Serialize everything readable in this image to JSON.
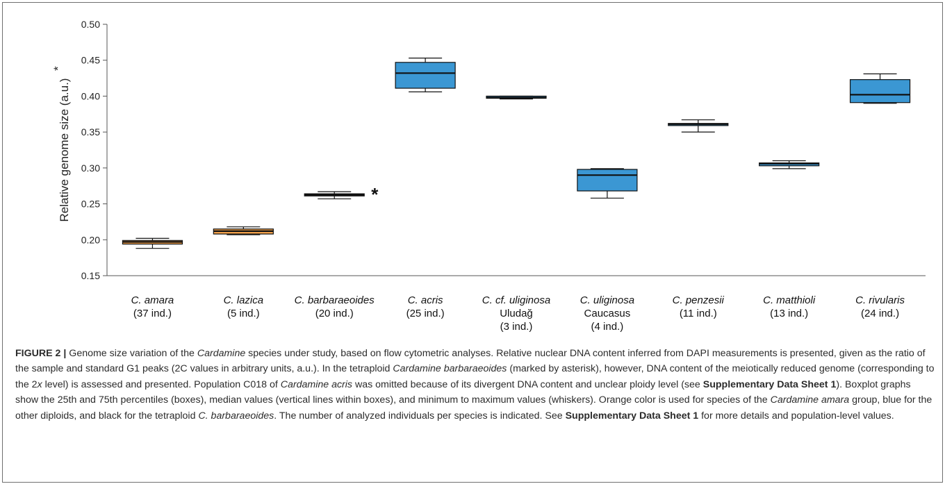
{
  "chart_data": {
    "type": "box",
    "ylabel": "Relative genome size (a.u.)",
    "ylabel_marker": "*",
    "ylim": [
      0.15,
      0.5
    ],
    "yticks": [
      "0.50",
      "0.45",
      "0.40",
      "0.35",
      "0.30",
      "0.25",
      "0.20",
      "0.15"
    ],
    "grid": false,
    "colors": {
      "amara_group": "#f0a04b",
      "other_diploids": "#3b97d3",
      "tetraploid": "#000000"
    },
    "categories": [
      {
        "lines": [
          "C. amara",
          "(37 ind.)"
        ],
        "italic": [
          true,
          false
        ],
        "min": 0.188,
        "q1": 0.194,
        "median": 0.197,
        "q3": 0.199,
        "max": 0.202,
        "color": "#f0a04b",
        "marker": ""
      },
      {
        "lines": [
          "C. lazica",
          "(5 ind.)"
        ],
        "italic": [
          true,
          false
        ],
        "min": 0.207,
        "q1": 0.208,
        "median": 0.212,
        "q3": 0.215,
        "max": 0.218,
        "color": "#f0a04b",
        "marker": ""
      },
      {
        "lines": [
          "C. barbaraeoides",
          "(20 ind.)"
        ],
        "italic": [
          true,
          false
        ],
        "min": 0.257,
        "q1": 0.261,
        "median": 0.262,
        "q3": 0.264,
        "max": 0.267,
        "color": "#000000",
        "marker": "*"
      },
      {
        "lines": [
          "C. acris",
          "(25 ind.)"
        ],
        "italic": [
          true,
          false
        ],
        "min": 0.406,
        "q1": 0.411,
        "median": 0.432,
        "q3": 0.447,
        "max": 0.453,
        "color": "#3b97d3",
        "marker": ""
      },
      {
        "lines": [
          "C. cf. uliginosa",
          "Uludağ",
          "(3 ind.)"
        ],
        "italic": [
          true,
          false,
          false
        ],
        "min": 0.396,
        "q1": 0.397,
        "median": 0.398,
        "q3": 0.4,
        "max": 0.4,
        "color": "#3b97d3",
        "marker": ""
      },
      {
        "lines": [
          "C. uliginosa",
          "Caucasus",
          "(4 ind.)"
        ],
        "italic": [
          true,
          false,
          false
        ],
        "min": 0.258,
        "q1": 0.268,
        "median": 0.29,
        "q3": 0.298,
        "max": 0.299,
        "color": "#3b97d3",
        "marker": ""
      },
      {
        "lines": [
          "C. penzesii",
          "(11 ind.)"
        ],
        "italic": [
          true,
          false
        ],
        "min": 0.35,
        "q1": 0.359,
        "median": 0.361,
        "q3": 0.362,
        "max": 0.367,
        "color": "#3b97d3",
        "marker": ""
      },
      {
        "lines": [
          "C. matthioli",
          "(13 ind.)"
        ],
        "italic": [
          true,
          false
        ],
        "min": 0.299,
        "q1": 0.303,
        "median": 0.306,
        "q3": 0.307,
        "max": 0.31,
        "color": "#3b97d3",
        "marker": ""
      },
      {
        "lines": [
          "C. rivularis",
          "(24 ind.)"
        ],
        "italic": [
          true,
          false
        ],
        "min": 0.39,
        "q1": 0.391,
        "median": 0.402,
        "q3": 0.423,
        "max": 0.431,
        "color": "#3b97d3",
        "marker": ""
      }
    ]
  },
  "caption": {
    "label": "FIGURE 2 |",
    "s1": " Genome size variation of the ",
    "s1_em": "Cardamine",
    "s2": " species under study, based on flow cytometric analyses. Relative nuclear DNA content inferred from DAPI measurements is presented, given as the ratio of the sample and standard G1 peaks (2C values in arbitrary units, a.u.). In the tetraploid ",
    "s2_em": "Cardamine barbaraeoides",
    "s3": " (marked by asterisk), however, DNA content of the meiotically reduced genome (corresponding to the 2",
    "s3_em": "x",
    "s4": " level) is assessed and presented. Population C018 of ",
    "s4_em": "Cardamine acris",
    "s5": " was omitted because of its divergent DNA content and unclear ploidy level (see ",
    "s5_b": "Supplementary Data Sheet 1",
    "s6": "). Boxplot graphs show the 25th and 75th percentiles (boxes), median values (vertical lines within boxes), and minimum to maximum values (whiskers). Orange color is used for species of the ",
    "s6_em": "Cardamine amara",
    "s7": " group, blue for the other diploids, and black for the tetraploid ",
    "s7_em": "C. barbaraeoides",
    "s8": ". The number of analyzed individuals per species is indicated. See ",
    "s8_b": "Supplementary Data Sheet 1",
    "s9": " for more details and population-level values."
  }
}
